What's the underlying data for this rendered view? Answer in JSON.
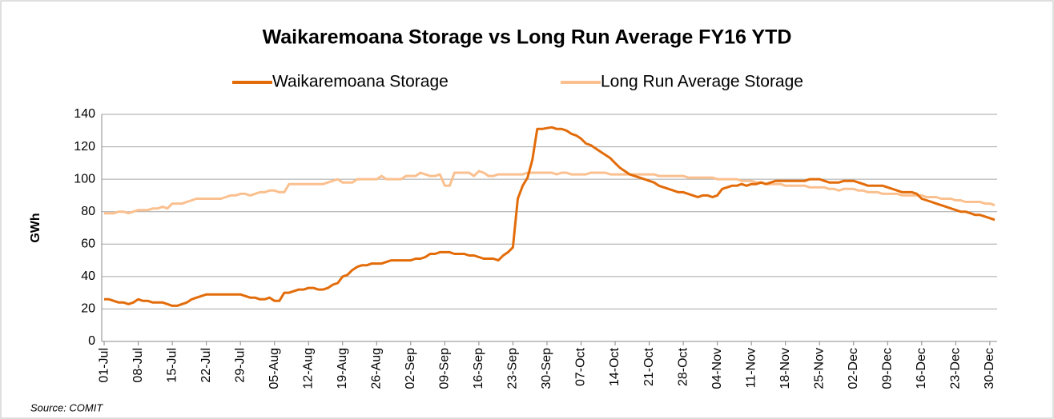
{
  "chart_data": {
    "type": "line",
    "title": "Waikaremoana Storage vs Long Run Average FY16 YTD",
    "ylabel": "GWh",
    "source": "Source: COMIT",
    "categories": [
      "01-Jul",
      null,
      null,
      null,
      null,
      null,
      null,
      "08-Jul",
      null,
      null,
      null,
      null,
      null,
      null,
      "15-Jul",
      null,
      null,
      null,
      null,
      null,
      null,
      "22-Jul",
      null,
      null,
      null,
      null,
      null,
      null,
      "29-Jul",
      null,
      null,
      null,
      null,
      null,
      null,
      "05-Aug",
      null,
      null,
      null,
      null,
      null,
      null,
      "12-Aug",
      null,
      null,
      null,
      null,
      null,
      null,
      "19-Aug",
      null,
      null,
      null,
      null,
      null,
      null,
      "26-Aug",
      null,
      null,
      null,
      null,
      null,
      null,
      "02-Sep",
      null,
      null,
      null,
      null,
      null,
      null,
      "09-Sep",
      null,
      null,
      null,
      null,
      null,
      null,
      "16-Sep",
      null,
      null,
      null,
      null,
      null,
      null,
      "23-Sep",
      null,
      null,
      null,
      null,
      null,
      null,
      "30-Sep",
      null,
      null,
      null,
      null,
      null,
      null,
      "07-Oct",
      null,
      null,
      null,
      null,
      null,
      null,
      "14-Oct",
      null,
      null,
      null,
      null,
      null,
      null,
      "21-Oct",
      null,
      null,
      null,
      null,
      null,
      null,
      "28-Oct",
      null,
      null,
      null,
      null,
      null,
      null,
      "04-Nov",
      null,
      null,
      null,
      null,
      null,
      null,
      "11-Nov",
      null,
      null,
      null,
      null,
      null,
      null,
      "18-Nov",
      null,
      null,
      null,
      null,
      null,
      null,
      "25-Nov",
      null,
      null,
      null,
      null,
      null,
      null,
      "02-Dec",
      null,
      null,
      null,
      null,
      null,
      null,
      "09-Dec",
      null,
      null,
      null,
      null,
      null,
      null,
      "16-Dec",
      null,
      null,
      null,
      null,
      null,
      null,
      "23-Dec",
      null,
      null,
      null,
      null,
      null,
      null,
      "30-Dec",
      null
    ],
    "series": [
      {
        "name": "Waikaremoana Storage",
        "color": "#e36c0a",
        "values": [
          26,
          26,
          25,
          24,
          24,
          23,
          24,
          26,
          25,
          25,
          24,
          24,
          24,
          23,
          22,
          22,
          23,
          24,
          26,
          27,
          28,
          29,
          29,
          29,
          29,
          29,
          29,
          29,
          29,
          28,
          27,
          27,
          26,
          26,
          27,
          25,
          25,
          30,
          30,
          31,
          32,
          32,
          33,
          33,
          32,
          32,
          33,
          35,
          36,
          40,
          41,
          44,
          46,
          47,
          47,
          48,
          48,
          48,
          49,
          50,
          50,
          50,
          50,
          50,
          51,
          51,
          52,
          54,
          54,
          55,
          55,
          55,
          54,
          54,
          54,
          53,
          53,
          52,
          51,
          51,
          51,
          50,
          53,
          55,
          58,
          88,
          96,
          101,
          112,
          131,
          131,
          131.5,
          132,
          131,
          131,
          130,
          128,
          127,
          125,
          122,
          121,
          119,
          117,
          115,
          113,
          110,
          107,
          105,
          103,
          102,
          101,
          100,
          99,
          98,
          96,
          95,
          94,
          93,
          92,
          92,
          91,
          90,
          89,
          90,
          90,
          89,
          90,
          94,
          95,
          96,
          96,
          97,
          96,
          97,
          97,
          98,
          97,
          98,
          99,
          99,
          99,
          99,
          99,
          99,
          99,
          100,
          100,
          100,
          99,
          98,
          98,
          98,
          99,
          99,
          99,
          98,
          97,
          96,
          96,
          96,
          96,
          95,
          94,
          93,
          92,
          92,
          92,
          91,
          88,
          87,
          86,
          85,
          84,
          83,
          82,
          81,
          80,
          80,
          79,
          78,
          78,
          77,
          76,
          75
        ]
      },
      {
        "name": "Long Run Average Storage",
        "color": "#fac08f",
        "values": [
          79,
          79,
          79,
          80,
          80,
          79,
          80,
          81,
          81,
          81,
          82,
          82,
          83,
          82,
          85,
          85,
          85,
          86,
          87,
          88,
          88,
          88,
          88,
          88,
          88,
          89,
          90,
          90,
          91,
          91,
          90,
          91,
          92,
          92,
          93,
          93,
          92,
          92,
          97,
          97,
          97,
          97,
          97,
          97,
          97,
          97,
          98,
          99,
          100,
          98,
          98,
          98,
          100,
          100,
          100,
          100,
          100,
          102,
          100,
          100,
          100,
          100,
          102,
          102,
          102,
          104,
          103,
          102,
          102,
          103,
          96,
          96,
          104,
          104,
          104,
          104,
          102,
          105,
          104,
          102,
          102,
          103,
          103,
          103,
          103,
          103,
          103,
          104,
          104,
          104,
          104,
          104,
          104,
          103,
          104,
          104,
          103,
          103,
          103,
          103,
          104,
          104,
          104,
          104,
          103,
          103,
          103,
          103,
          103,
          103,
          103,
          103,
          103,
          103,
          102,
          102,
          102,
          102,
          102,
          102,
          101,
          101,
          101,
          101,
          101,
          101,
          100,
          100,
          100,
          100,
          100,
          99,
          99,
          99,
          98,
          98,
          97,
          97,
          97,
          97,
          96,
          96,
          96,
          96,
          96,
          95,
          95,
          95,
          95,
          94,
          94,
          93,
          94,
          94,
          94,
          93,
          93,
          92,
          92,
          92,
          91,
          91,
          91,
          91,
          90,
          90,
          90,
          90,
          90,
          89,
          89,
          89,
          88,
          88,
          88,
          87,
          87,
          86,
          86,
          86,
          86,
          85,
          85,
          84
        ]
      }
    ],
    "ylim": [
      0,
      140
    ],
    "yticks": [
      0,
      20,
      40,
      60,
      80,
      100,
      120,
      140
    ],
    "grid": true,
    "legend": "top"
  }
}
